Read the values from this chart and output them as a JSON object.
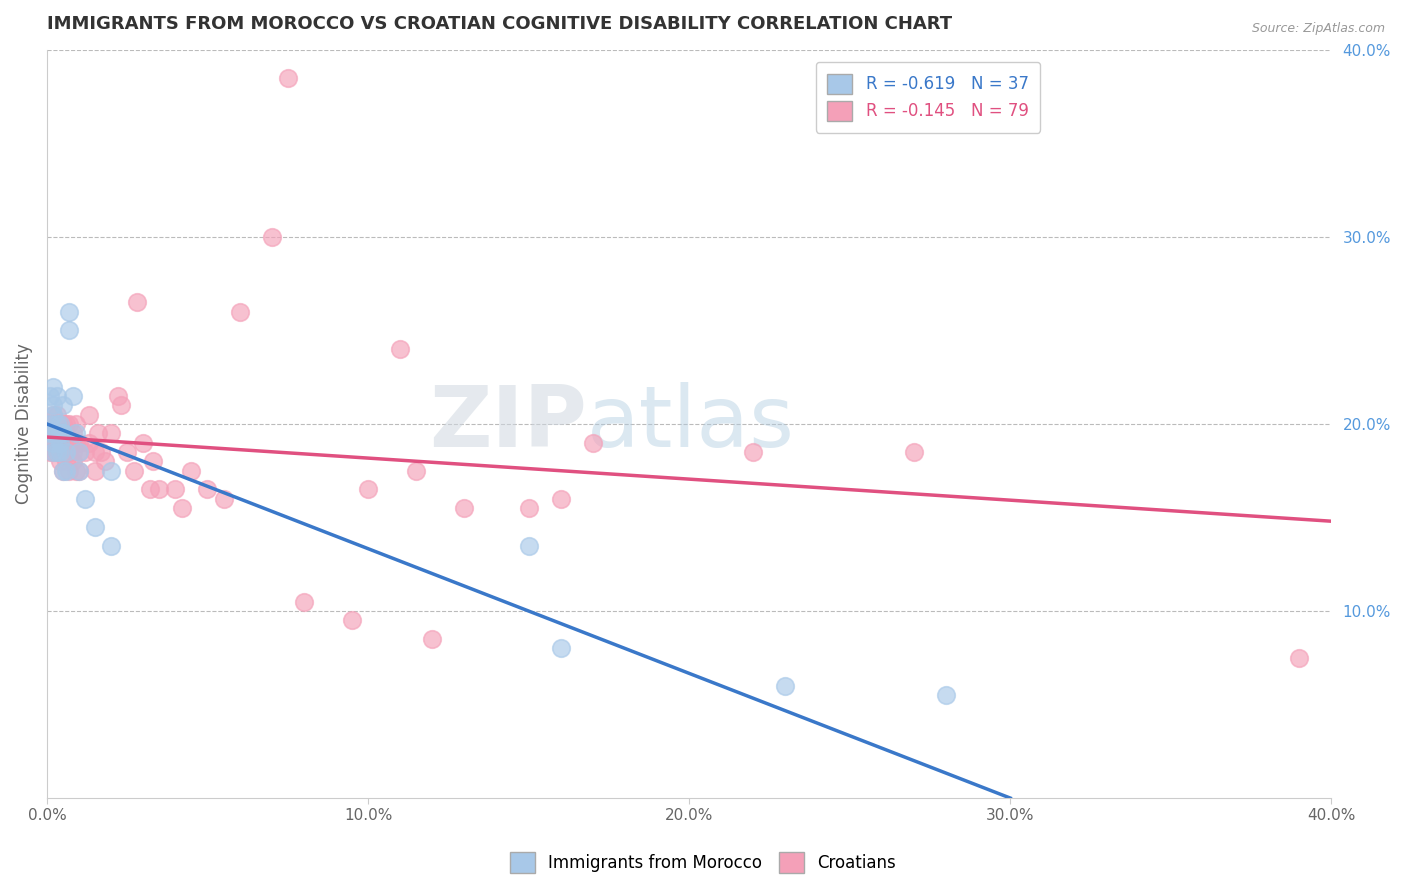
{
  "title": "IMMIGRANTS FROM MOROCCO VS CROATIAN COGNITIVE DISABILITY CORRELATION CHART",
  "source": "Source: ZipAtlas.com",
  "ylabel": "Cognitive Disability",
  "xlim": [
    0.0,
    0.4
  ],
  "ylim": [
    0.0,
    0.4
  ],
  "x_ticks": [
    0.0,
    0.1,
    0.2,
    0.3,
    0.4
  ],
  "x_tick_labels": [
    "0.0%",
    "10.0%",
    "20.0%",
    "30.0%",
    "40.0%"
  ],
  "y_ticks_right": [
    0.1,
    0.2,
    0.3,
    0.4
  ],
  "y_tick_labels_right": [
    "10.0%",
    "20.0%",
    "30.0%",
    "40.0%"
  ],
  "legend_label1": "Immigrants from Morocco",
  "legend_label2": "Croatians",
  "R1": -0.619,
  "N1": 37,
  "R2": -0.145,
  "N2": 79,
  "color1": "#a8c8e8",
  "color2": "#f4a0b8",
  "color1_line": "#3a78c9",
  "color2_line": "#e05080",
  "watermark_zip": "ZIP",
  "watermark_atlas": "atlas",
  "blue_scatter_x": [
    0.001,
    0.001,
    0.001,
    0.002,
    0.002,
    0.002,
    0.002,
    0.002,
    0.002,
    0.003,
    0.003,
    0.003,
    0.003,
    0.004,
    0.004,
    0.004,
    0.004,
    0.005,
    0.005,
    0.005,
    0.005,
    0.006,
    0.006,
    0.007,
    0.007,
    0.008,
    0.009,
    0.01,
    0.01,
    0.012,
    0.015,
    0.02,
    0.02,
    0.15,
    0.16,
    0.23,
    0.28
  ],
  "blue_scatter_y": [
    0.195,
    0.2,
    0.215,
    0.205,
    0.21,
    0.195,
    0.19,
    0.185,
    0.22,
    0.2,
    0.195,
    0.185,
    0.215,
    0.195,
    0.2,
    0.19,
    0.185,
    0.195,
    0.175,
    0.195,
    0.21,
    0.185,
    0.175,
    0.25,
    0.26,
    0.215,
    0.195,
    0.175,
    0.185,
    0.16,
    0.145,
    0.135,
    0.175,
    0.135,
    0.08,
    0.06,
    0.055
  ],
  "pink_scatter_x": [
    0.001,
    0.001,
    0.001,
    0.002,
    0.002,
    0.002,
    0.002,
    0.003,
    0.003,
    0.003,
    0.003,
    0.003,
    0.003,
    0.004,
    0.004,
    0.004,
    0.004,
    0.005,
    0.005,
    0.005,
    0.005,
    0.005,
    0.006,
    0.006,
    0.006,
    0.006,
    0.007,
    0.007,
    0.007,
    0.007,
    0.007,
    0.008,
    0.008,
    0.008,
    0.009,
    0.009,
    0.009,
    0.01,
    0.01,
    0.01,
    0.012,
    0.013,
    0.013,
    0.015,
    0.015,
    0.016,
    0.017,
    0.018,
    0.02,
    0.022,
    0.023,
    0.025,
    0.027,
    0.028,
    0.03,
    0.032,
    0.033,
    0.035,
    0.04,
    0.042,
    0.045,
    0.05,
    0.055,
    0.06,
    0.07,
    0.075,
    0.08,
    0.095,
    0.1,
    0.11,
    0.115,
    0.12,
    0.13,
    0.15,
    0.16,
    0.17,
    0.22,
    0.27,
    0.39
  ],
  "pink_scatter_y": [
    0.2,
    0.195,
    0.185,
    0.205,
    0.195,
    0.19,
    0.185,
    0.195,
    0.2,
    0.195,
    0.185,
    0.205,
    0.19,
    0.195,
    0.185,
    0.2,
    0.18,
    0.195,
    0.2,
    0.185,
    0.19,
    0.175,
    0.195,
    0.185,
    0.2,
    0.18,
    0.19,
    0.185,
    0.2,
    0.175,
    0.185,
    0.195,
    0.18,
    0.185,
    0.2,
    0.19,
    0.175,
    0.19,
    0.185,
    0.175,
    0.185,
    0.205,
    0.19,
    0.185,
    0.175,
    0.195,
    0.185,
    0.18,
    0.195,
    0.215,
    0.21,
    0.185,
    0.175,
    0.265,
    0.19,
    0.165,
    0.18,
    0.165,
    0.165,
    0.155,
    0.175,
    0.165,
    0.16,
    0.26,
    0.3,
    0.385,
    0.105,
    0.095,
    0.165,
    0.24,
    0.175,
    0.085,
    0.155,
    0.155,
    0.16,
    0.19,
    0.185,
    0.185,
    0.075
  ],
  "blue_line_x0": 0.0,
  "blue_line_y0": 0.2,
  "blue_line_x1": 0.3,
  "blue_line_y1": 0.0,
  "pink_line_x0": 0.0,
  "pink_line_y0": 0.193,
  "pink_line_x1": 0.4,
  "pink_line_y1": 0.148
}
